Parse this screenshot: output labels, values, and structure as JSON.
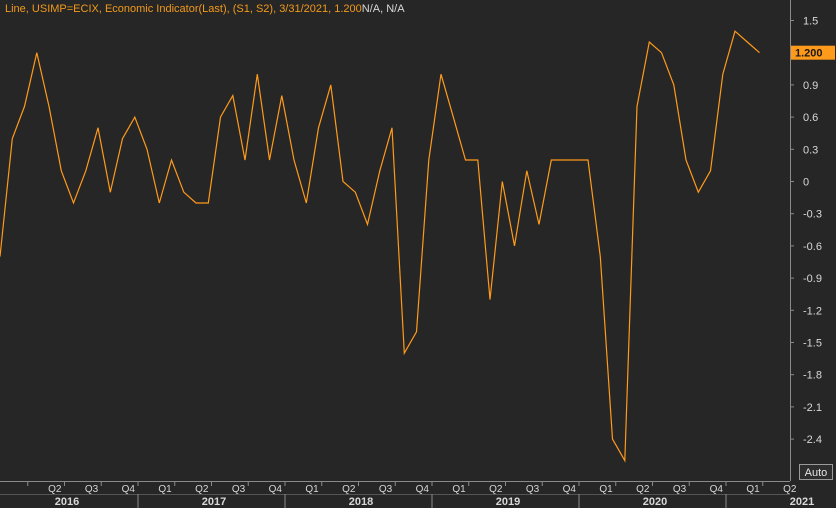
{
  "legend": {
    "text": "Line, USIMP=ECIX, Economic Indicator(Last), (S1, S2), 3/31/2021, 1.200",
    "na_text": "N/A, N/A"
  },
  "last_value_label": "1.200",
  "auto_button": "Auto",
  "colors": {
    "background": "#262626",
    "line": "#ff9a1a",
    "grid": "#3a3a3a",
    "text": "#d8d8d8",
    "last_value_bg": "#ff9a1a"
  },
  "chart_data": {
    "type": "line",
    "series": [
      {
        "name": "USIMP=ECIX",
        "x": [
          "2016-01",
          "2016-02",
          "2016-03",
          "2016-04",
          "2016-05",
          "2016-06",
          "2016-07",
          "2016-08",
          "2016-09",
          "2016-10",
          "2016-11",
          "2016-12",
          "2017-01",
          "2017-02",
          "2017-03",
          "2017-04",
          "2017-05",
          "2017-06",
          "2017-07",
          "2017-08",
          "2017-09",
          "2017-10",
          "2017-11",
          "2017-12",
          "2018-01",
          "2018-02",
          "2018-03",
          "2018-04",
          "2018-05",
          "2018-06",
          "2018-07",
          "2018-08",
          "2018-09",
          "2018-10",
          "2018-11",
          "2018-12",
          "2019-01",
          "2019-02",
          "2019-03",
          "2019-04",
          "2019-05",
          "2019-06",
          "2019-07",
          "2019-08",
          "2019-09",
          "2019-10",
          "2019-11",
          "2019-12",
          "2020-01",
          "2020-02",
          "2020-03",
          "2020-04",
          "2020-05",
          "2020-06",
          "2020-07",
          "2020-08",
          "2020-09",
          "2020-10",
          "2020-11",
          "2020-12",
          "2021-01",
          "2021-02",
          "2021-03"
        ],
        "values": [
          -0.7,
          0.4,
          0.7,
          1.2,
          0.7,
          0.1,
          -0.2,
          0.1,
          0.5,
          -0.1,
          0.4,
          0.6,
          0.3,
          -0.2,
          0.2,
          -0.1,
          -0.2,
          -0.2,
          0.6,
          0.8,
          0.2,
          1.0,
          0.2,
          0.8,
          0.2,
          -0.2,
          0.5,
          0.9,
          0.0,
          -0.1,
          -0.4,
          0.1,
          0.5,
          -1.6,
          -1.4,
          0.2,
          1.0,
          0.6,
          0.2,
          0.2,
          -1.1,
          0.0,
          -0.6,
          0.1,
          -0.4,
          0.2,
          0.2,
          0.2,
          0.2,
          -0.7,
          -2.4,
          -2.6,
          0.7,
          1.3,
          1.2,
          0.9,
          0.2,
          -0.1,
          0.1,
          1.0,
          1.4,
          1.3,
          1.2
        ]
      }
    ],
    "y_ticks": [
      "1.5",
      "1.2",
      "0.9",
      "0.6",
      "0.3",
      "0",
      "-0.3",
      "-0.6",
      "-0.9",
      "-1.2",
      "-1.5",
      "-1.8",
      "-2.1",
      "-2.4"
    ],
    "x_quarter_labels": [
      "Q2",
      "Q3",
      "Q4",
      "Q1",
      "Q2",
      "Q3",
      "Q4",
      "Q1",
      "Q2",
      "Q3",
      "Q4",
      "Q1",
      "Q2",
      "Q3",
      "Q4",
      "Q1",
      "Q2",
      "Q3",
      "Q4",
      "Q1",
      "Q2"
    ],
    "x_year_labels": [
      "2016",
      "2017",
      "2018",
      "2019",
      "2020",
      "2021"
    ],
    "ylim": [
      -2.7,
      1.65
    ],
    "grid": false,
    "legend_position": "top-left"
  }
}
